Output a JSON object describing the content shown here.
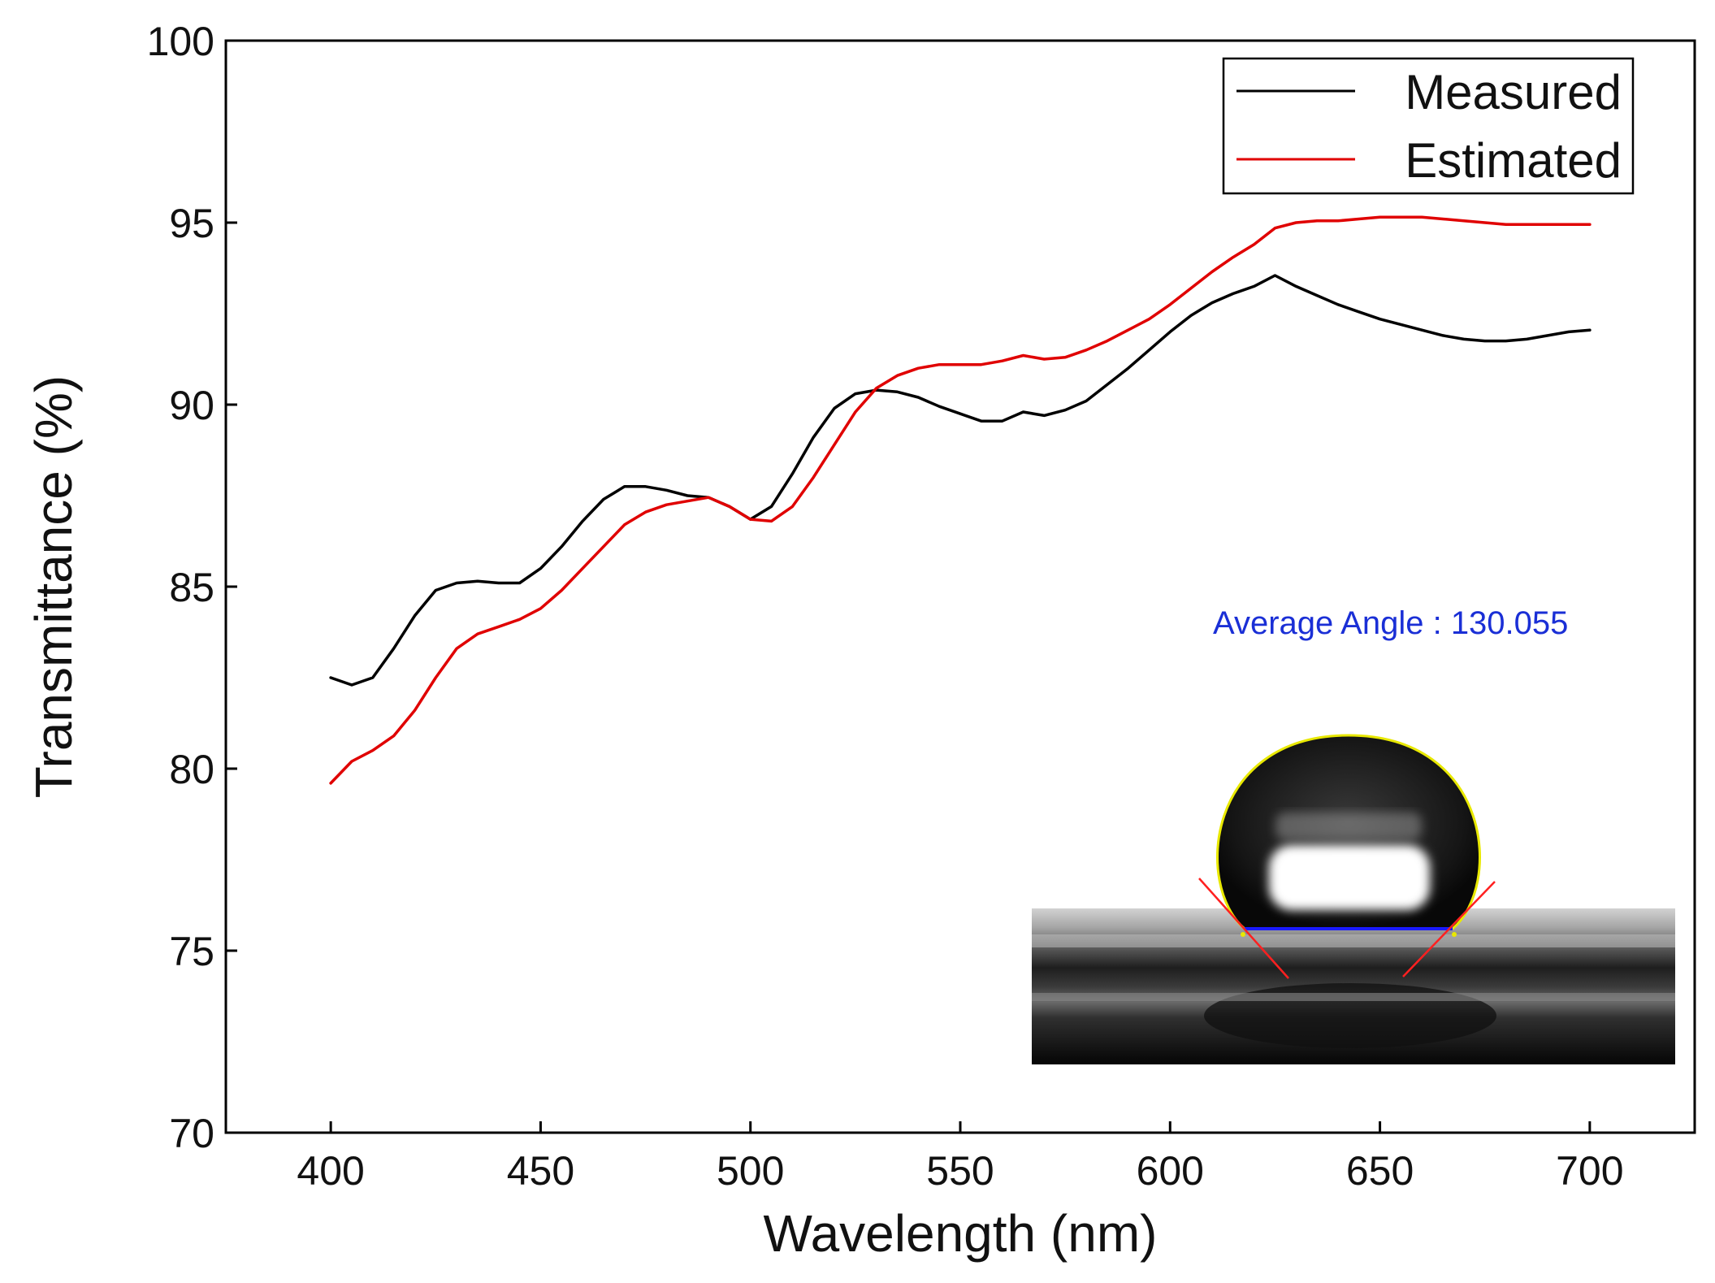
{
  "chart_data": {
    "type": "line",
    "title": "",
    "xlabel": "Wavelength (nm)",
    "ylabel": "Transmittance (%)",
    "xlim": [
      375,
      725
    ],
    "ylim": [
      70,
      100
    ],
    "xticks": [
      400,
      450,
      500,
      550,
      600,
      650,
      700
    ],
    "yticks": [
      70,
      75,
      80,
      85,
      90,
      95,
      100
    ],
    "grid": false,
    "legend_position": "top-right",
    "series": [
      {
        "name": "Measured",
        "color": "#000000",
        "x": [
          400,
          405,
          410,
          415,
          420,
          425,
          430,
          435,
          440,
          445,
          450,
          455,
          460,
          465,
          470,
          475,
          480,
          485,
          490,
          495,
          500,
          505,
          510,
          515,
          520,
          525,
          530,
          535,
          540,
          545,
          550,
          555,
          560,
          565,
          570,
          575,
          580,
          585,
          590,
          595,
          600,
          605,
          610,
          615,
          620,
          625,
          630,
          635,
          640,
          645,
          650,
          655,
          660,
          665,
          670,
          675,
          680,
          685,
          690,
          695,
          700
        ],
        "y": [
          82.5,
          82.3,
          82.5,
          83.3,
          84.2,
          84.9,
          85.1,
          85.15,
          85.1,
          85.1,
          85.5,
          86.1,
          86.8,
          87.4,
          87.75,
          87.75,
          87.65,
          87.5,
          87.45,
          87.2,
          86.85,
          87.2,
          88.1,
          89.1,
          89.9,
          90.3,
          90.4,
          90.35,
          90.2,
          89.95,
          89.75,
          89.55,
          89.55,
          89.8,
          89.7,
          89.85,
          90.1,
          90.55,
          91.0,
          91.5,
          92.0,
          92.45,
          92.8,
          93.05,
          93.25,
          93.55,
          93.25,
          93.0,
          92.75,
          92.55,
          92.35,
          92.2,
          92.05,
          91.9,
          91.8,
          91.75,
          91.75,
          91.8,
          91.9,
          92.0,
          92.05
        ]
      },
      {
        "name": "Estimated",
        "color": "#e00000",
        "x": [
          400,
          405,
          410,
          415,
          420,
          425,
          430,
          435,
          440,
          445,
          450,
          455,
          460,
          465,
          470,
          475,
          480,
          485,
          490,
          495,
          500,
          505,
          510,
          515,
          520,
          525,
          530,
          535,
          540,
          545,
          550,
          555,
          560,
          565,
          570,
          575,
          580,
          585,
          590,
          595,
          600,
          605,
          610,
          615,
          620,
          625,
          630,
          635,
          640,
          645,
          650,
          655,
          660,
          665,
          670,
          675,
          680,
          685,
          690,
          695,
          700
        ],
        "y": [
          79.6,
          80.2,
          80.5,
          80.9,
          81.6,
          82.5,
          83.3,
          83.7,
          83.9,
          84.1,
          84.4,
          84.9,
          85.5,
          86.1,
          86.7,
          87.05,
          87.25,
          87.35,
          87.45,
          87.2,
          86.85,
          86.8,
          87.2,
          88.0,
          88.9,
          89.8,
          90.45,
          90.8,
          91.0,
          91.1,
          91.1,
          91.1,
          91.2,
          91.35,
          91.25,
          91.3,
          91.5,
          91.75,
          92.05,
          92.35,
          92.75,
          93.2,
          93.65,
          94.05,
          94.4,
          94.85,
          95.0,
          95.05,
          95.05,
          95.1,
          95.15,
          95.15,
          95.15,
          95.1,
          95.05,
          95.0,
          94.95,
          94.95,
          94.95,
          94.95,
          94.95
        ]
      }
    ],
    "annotations": [
      {
        "text": "Average Angle : 130.055",
        "color": "#1a2fd6",
        "placement": "inset-above"
      }
    ],
    "inset_image": {
      "subject": "water droplet contact angle photo",
      "droplet_line_color": "#ffff00",
      "baseline_color": "#1a1aff",
      "tangent_color": "#ff2020"
    }
  }
}
